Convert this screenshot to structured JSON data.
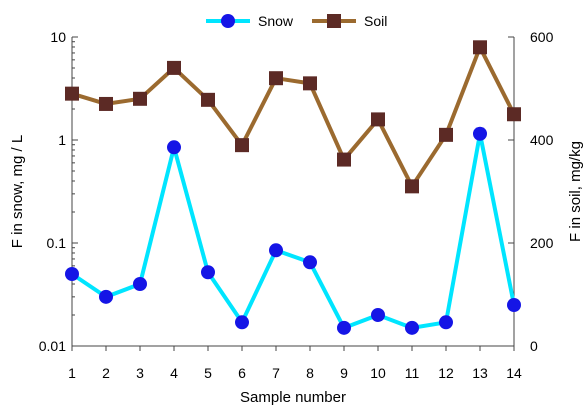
{
  "chart_data": {
    "type": "line",
    "title": "",
    "xlabel": "Sample number",
    "ylabel_left": "F in snow, mg / L",
    "ylabel_right": "F in soil, mg/kg",
    "x": [
      1,
      2,
      3,
      4,
      5,
      6,
      7,
      8,
      9,
      10,
      11,
      12,
      13,
      14
    ],
    "x_ticks": [
      "1",
      "2",
      "3",
      "4",
      "5",
      "6",
      "7",
      "8",
      "9",
      "10",
      "11",
      "12",
      "13",
      "14"
    ],
    "y_left": {
      "scale": "log",
      "lim": [
        0.01,
        10
      ],
      "ticks": [
        "0.01",
        "0.1",
        "1",
        "10"
      ],
      "tick_values": [
        0.01,
        0.1,
        1,
        10
      ]
    },
    "y_right": {
      "scale": "linear",
      "lim": [
        0,
        600
      ],
      "ticks": [
        "0",
        "200",
        "400",
        "600"
      ],
      "tick_values": [
        0,
        200,
        400,
        600
      ]
    },
    "grid": false,
    "legend_position": "top-center",
    "series": [
      {
        "name": "Snow",
        "axis": "left",
        "color": "#00e5ff",
        "marker_color": "#1515e6",
        "marker": "circle",
        "values": [
          0.05,
          0.03,
          0.04,
          0.85,
          0.052,
          0.017,
          0.085,
          0.065,
          0.015,
          0.02,
          0.015,
          0.017,
          1.15,
          0.025
        ]
      },
      {
        "name": "Soil",
        "axis": "right",
        "color": "#9b6a2f",
        "marker_color": "#5c2a25",
        "marker": "square",
        "values": [
          490,
          470,
          480,
          540,
          478,
          390,
          520,
          510,
          362,
          440,
          310,
          410,
          580,
          450
        ]
      }
    ]
  }
}
